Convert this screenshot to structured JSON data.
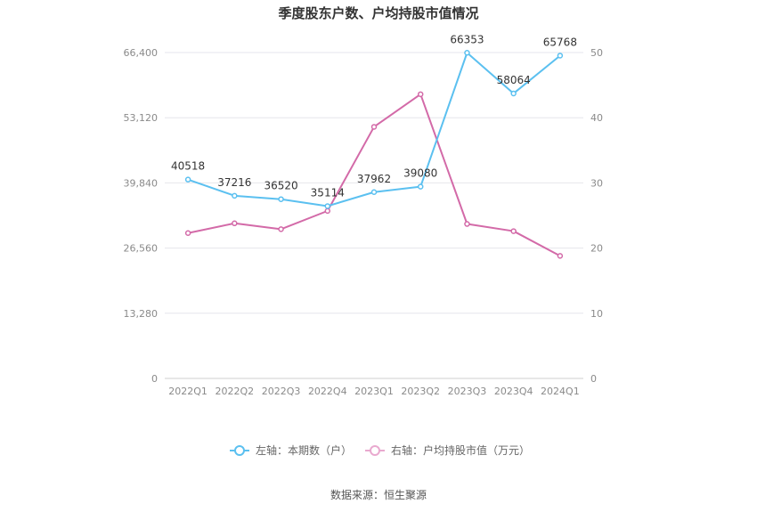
{
  "chart_data": {
    "type": "line",
    "title": "季度股东户数、户均持股市值情况",
    "categories": [
      "2022Q1",
      "2022Q2",
      "2022Q3",
      "2022Q4",
      "2023Q1",
      "2023Q2",
      "2023Q3",
      "2023Q4",
      "2024Q1"
    ],
    "series": [
      {
        "name": "左轴：本期数（户）",
        "axis": "left",
        "color": "#5bc0f0",
        "values": [
          40518,
          37216,
          36520,
          35114,
          37962,
          39080,
          66353,
          58064,
          65768
        ],
        "labels": [
          "40518",
          "37216",
          "36520",
          "35114",
          "37962",
          "39080",
          "66353",
          "58064",
          "65768"
        ]
      },
      {
        "name": "右轴：户均持股市值（万元）",
        "axis": "right",
        "color": "#d36aa8",
        "values": [
          22.3,
          23.8,
          22.9,
          25.7,
          38.6,
          43.6,
          23.7,
          22.6,
          18.8
        ]
      }
    ],
    "left_axis": {
      "min": 0,
      "max": 66400,
      "ticks": [
        0,
        13280,
        26560,
        39840,
        53120,
        66400
      ],
      "tick_labels": [
        "0",
        "13,280",
        "26,560",
        "39,840",
        "53,120",
        "66,400"
      ]
    },
    "right_axis": {
      "min": 0,
      "max": 50,
      "ticks": [
        0,
        10,
        20,
        30,
        40,
        50
      ],
      "tick_labels": [
        "0",
        "10",
        "20",
        "30",
        "40",
        "50"
      ]
    },
    "grid": true,
    "legend_position": "bottom-center"
  },
  "source_text": "数据来源：恒生聚源"
}
